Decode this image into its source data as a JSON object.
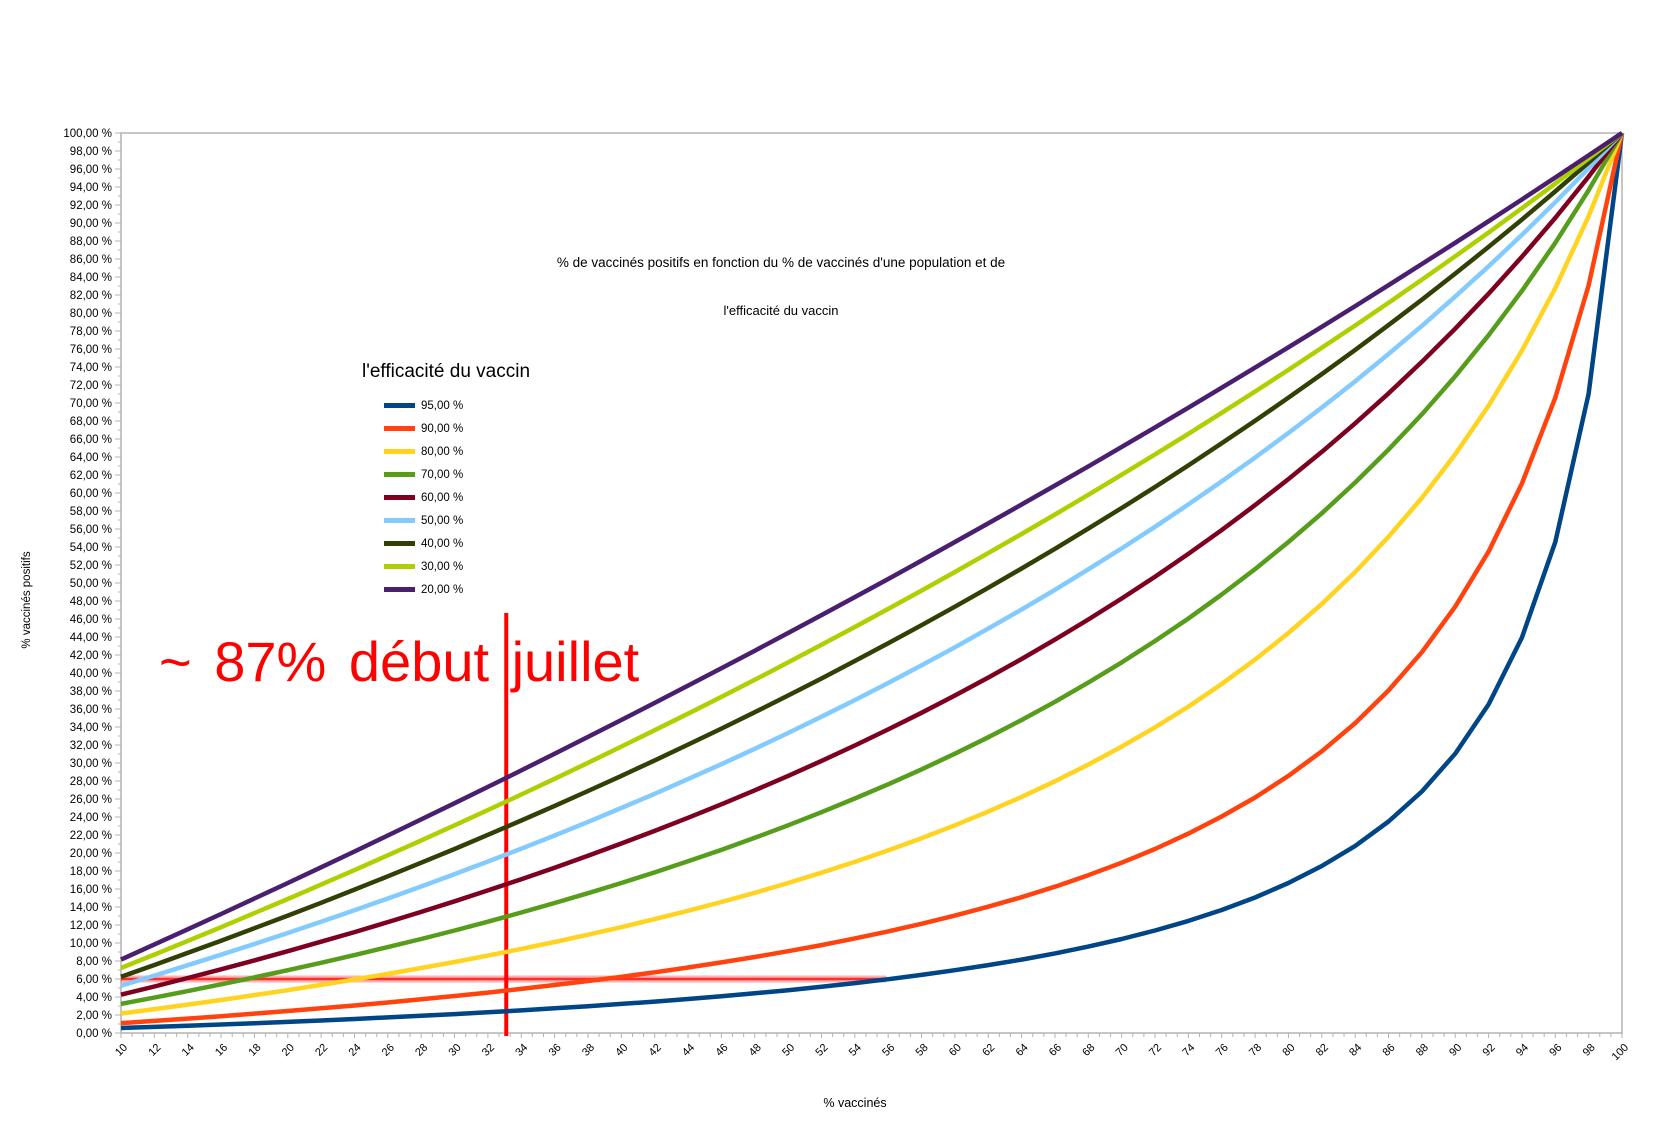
{
  "chart_data": {
    "type": "line",
    "title_line1": "% de vaccinés positifs en fonction du % de vaccinés d'une population et de",
    "title_line2": "l'efficacité du vaccin",
    "xlabel": "% vaccinés",
    "ylabel": "% vaccinés positifs",
    "xlim": [
      10,
      100
    ],
    "ylim": [
      0,
      100
    ],
    "grid": false,
    "axis_color": "#b3b3b3",
    "y_tick_step": 2,
    "y_tick_format": "{v},00 %",
    "x": [
      10,
      12,
      14,
      16,
      18,
      20,
      22,
      24,
      26,
      28,
      30,
      32,
      34,
      36,
      38,
      40,
      42,
      44,
      46,
      48,
      50,
      52,
      54,
      56,
      58,
      60,
      62,
      64,
      66,
      68,
      70,
      72,
      74,
      76,
      78,
      80,
      82,
      84,
      86,
      88,
      90,
      92,
      94,
      96,
      98,
      100
    ],
    "legend": {
      "title": "l'efficacité du vaccin",
      "position": "inner-top-left"
    },
    "series": [
      {
        "name": "95,00 %",
        "efficacy": 95,
        "color": "#004586",
        "values": [
          0.55,
          0.68,
          0.81,
          0.94,
          1.09,
          1.23,
          1.39,
          1.55,
          1.73,
          1.91,
          2.1,
          2.3,
          2.51,
          2.74,
          2.97,
          3.23,
          3.49,
          3.78,
          4.09,
          4.41,
          4.76,
          5.14,
          5.54,
          5.98,
          6.46,
          6.98,
          7.54,
          8.16,
          8.85,
          9.6,
          10.45,
          11.39,
          12.46,
          13.67,
          15.06,
          16.67,
          18.55,
          20.79,
          23.5,
          26.83,
          31.03,
          36.51,
          43.93,
          54.55,
          71.01,
          100
        ]
      },
      {
        "name": "90,00 %",
        "efficacy": 90,
        "color": "#FF420E",
        "values": [
          1.1,
          1.35,
          1.6,
          1.87,
          2.15,
          2.44,
          2.74,
          3.06,
          3.39,
          3.74,
          4.11,
          4.49,
          4.9,
          5.33,
          5.78,
          6.25,
          6.75,
          7.28,
          7.85,
          8.45,
          9.09,
          9.77,
          10.51,
          11.29,
          12.13,
          13.04,
          14.03,
          15.09,
          16.26,
          17.53,
          18.92,
          20.45,
          22.16,
          24.05,
          26.17,
          28.57,
          31.3,
          34.43,
          38.05,
          42.31,
          47.37,
          53.49,
          61.04,
          70.59,
          83.05,
          100
        ]
      },
      {
        "name": "80,00 %",
        "efficacy": 80,
        "color": "#FFD320",
        "values": [
          2.17,
          2.65,
          3.15,
          3.67,
          4.21,
          4.76,
          5.34,
          5.94,
          6.57,
          7.22,
          7.89,
          8.6,
          9.34,
          10.11,
          10.92,
          11.76,
          12.65,
          13.58,
          14.56,
          15.58,
          16.67,
          17.81,
          19.01,
          20.29,
          21.64,
          23.08,
          24.6,
          26.23,
          27.97,
          29.82,
          31.82,
          33.96,
          36.27,
          38.78,
          41.49,
          44.44,
          47.67,
          51.22,
          55.13,
          59.46,
          64.29,
          69.7,
          75.81,
          82.76,
          90.74,
          100
        ]
      },
      {
        "name": "70,00 %",
        "efficacy": 70,
        "color": "#579D1C",
        "values": [
          3.23,
          3.93,
          4.66,
          5.41,
          6.18,
          6.98,
          7.8,
          8.65,
          9.54,
          10.45,
          11.39,
          12.37,
          13.39,
          14.44,
          15.53,
          16.67,
          17.85,
          19.08,
          20.35,
          21.69,
          23.08,
          24.53,
          26.05,
          27.63,
          29.29,
          31.03,
          32.86,
          34.78,
          36.8,
          38.93,
          41.18,
          43.55,
          46.06,
          48.72,
          51.54,
          54.55,
          57.75,
          61.17,
          64.82,
          68.75,
          72.97,
          77.53,
          82.46,
          87.8,
          93.63,
          100
        ]
      },
      {
        "name": "60,00 %",
        "efficacy": 60,
        "color": "#7E0021",
        "values": [
          4.26,
          5.17,
          6.11,
          7.08,
          8.07,
          9.09,
          10.14,
          11.21,
          12.32,
          13.46,
          14.63,
          15.84,
          17.09,
          18.37,
          19.69,
          21.05,
          22.46,
          23.91,
          25.41,
          26.97,
          28.57,
          30.23,
          31.95,
          33.73,
          35.58,
          37.5,
          39.49,
          41.56,
          43.71,
          45.95,
          48.28,
          50.7,
          53.24,
          55.88,
          58.65,
          61.54,
          64.57,
          67.74,
          71.07,
          74.58,
          78.26,
          82.14,
          86.24,
          90.57,
          95.15,
          100
        ]
      },
      {
        "name": "50,00 %",
        "efficacy": 50,
        "color": "#83CAFF",
        "values": [
          5.26,
          6.38,
          7.53,
          8.7,
          9.89,
          11.11,
          12.36,
          13.64,
          14.94,
          16.28,
          17.65,
          19.05,
          20.48,
          21.95,
          23.46,
          25,
          26.58,
          28.21,
          29.87,
          31.58,
          33.33,
          35.14,
          36.99,
          38.89,
          40.85,
          42.86,
          44.93,
          47.06,
          49.25,
          51.52,
          53.85,
          56.25,
          58.73,
          61.29,
          63.93,
          66.67,
          69.49,
          72.41,
          75.44,
          78.57,
          81.82,
          85.19,
          88.68,
          92.31,
          96.08,
          100
        ]
      },
      {
        "name": "40,00 %",
        "efficacy": 40,
        "color": "#314004",
        "values": [
          6.25,
          7.56,
          8.9,
          10.26,
          11.64,
          13.04,
          14.47,
          15.93,
          17.41,
          18.92,
          20.45,
          22.02,
          23.61,
          25.23,
          26.89,
          28.57,
          30.29,
          32.04,
          33.82,
          35.64,
          37.5,
          39.39,
          41.33,
          43.3,
          45.31,
          47.37,
          49.47,
          51.61,
          53.8,
          56.04,
          58.33,
          60.67,
          63.07,
          65.52,
          68.02,
          70.59,
          73.21,
          75.9,
          78.66,
          81.48,
          84.38,
          87.34,
          90.38,
          93.51,
          96.71,
          100
        ]
      },
      {
        "name": "30,00 %",
        "efficacy": 30,
        "color": "#AECF00",
        "values": [
          7.22,
          8.71,
          10.23,
          11.76,
          13.32,
          14.89,
          16.49,
          18.1,
          19.74,
          21.4,
          23.08,
          24.78,
          26.5,
          28.25,
          30.02,
          31.82,
          33.64,
          35.48,
          37.35,
          39.25,
          41.18,
          43.13,
          45.11,
          47.12,
          49.15,
          51.22,
          53.32,
          55.45,
          57.61,
          59.8,
          62.03,
          64.29,
          66.58,
          68.91,
          71.28,
          73.68,
          76.13,
          78.61,
          81.13,
          83.7,
          86.3,
          88.95,
          91.64,
          94.38,
          97.17,
          100
        ]
      },
      {
        "name": "20,00 %",
        "efficacy": 20,
        "color": "#4B1F6F",
        "values": [
          8.16,
          9.84,
          11.52,
          13.22,
          14.94,
          16.67,
          18.41,
          20.17,
          21.94,
          23.73,
          25.53,
          27.35,
          29.18,
          31.03,
          32.9,
          34.78,
          36.68,
          38.6,
          40.53,
          42.48,
          44.44,
          46.43,
          48.43,
          50.45,
          52.49,
          54.55,
          56.62,
          58.72,
          60.83,
          62.96,
          65.12,
          67.29,
          69.48,
          71.7,
          73.93,
          76.19,
          78.47,
          80.77,
          83.09,
          85.44,
          87.8,
          90.2,
          92.61,
          95.05,
          97.51,
          100
        ]
      }
    ],
    "annotations": {
      "text": {
        "label": "~ 87% début juillet",
        "color": "#ff0000"
      },
      "vline": {
        "x": 33.1,
        "color": "#ff0000"
      },
      "hline": {
        "y": 6,
        "x_from": 10,
        "x_to": 55.9,
        "color": "#ff0000"
      }
    }
  }
}
